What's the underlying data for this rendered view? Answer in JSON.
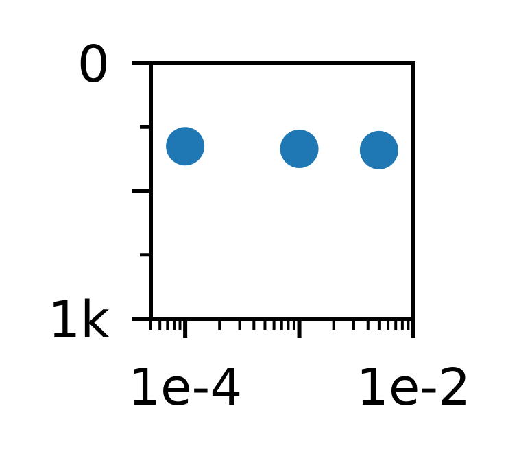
{
  "chart_data": {
    "type": "scatter",
    "title": "",
    "xlabel": "",
    "ylabel": "",
    "x_scale": "log",
    "xlim": [
      5e-05,
      0.01
    ],
    "ylim": [
      0,
      1000
    ],
    "y_inverted": true,
    "grid": false,
    "x_tick_labels": [
      {
        "value": 0.0001,
        "label": "1e-4"
      },
      {
        "value": 0.01,
        "label": "1e-2"
      }
    ],
    "y_tick_labels": [
      {
        "value": 0,
        "label": "0"
      },
      {
        "value": 1000,
        "label": "1k"
      }
    ],
    "y_minor_ticks": [
      250,
      500,
      750
    ],
    "series": [
      {
        "color": "#1f77b4",
        "points": [
          {
            "x": 0.0001,
            "y": 325
          },
          {
            "x": 0.001,
            "y": 335
          },
          {
            "x": 0.005,
            "y": 340
          }
        ]
      }
    ]
  }
}
